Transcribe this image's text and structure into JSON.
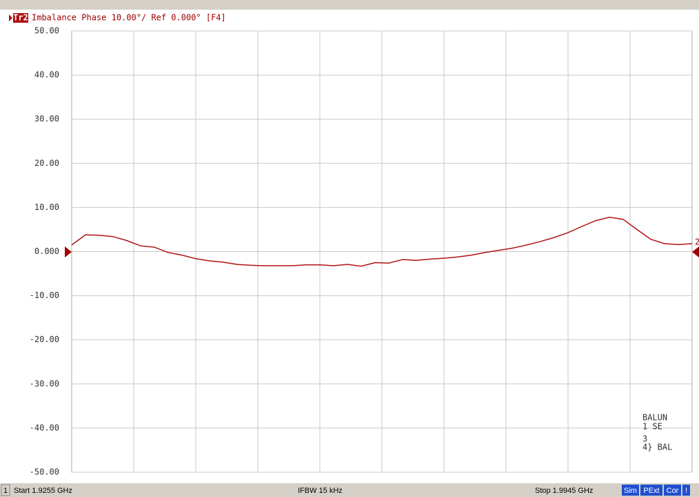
{
  "header": {
    "trace": "Tr2",
    "title": "Imbalance Phase 10.00°/ Ref 0.000° [F4]"
  },
  "chart_data": {
    "type": "line",
    "ylim": [
      -50,
      50
    ],
    "yticks": [
      {
        "value": 50,
        "label": "50.00"
      },
      {
        "value": 40,
        "label": "40.00"
      },
      {
        "value": 30,
        "label": "30.00"
      },
      {
        "value": 20,
        "label": "20.00"
      },
      {
        "value": 10,
        "label": "10.00"
      },
      {
        "value": 0,
        "label": "0.000"
      },
      {
        "value": -10,
        "label": "-10.00"
      },
      {
        "value": -20,
        "label": "-20.00"
      },
      {
        "value": -30,
        "label": "-30.00"
      },
      {
        "value": -40,
        "label": "-40.00"
      },
      {
        "value": -50,
        "label": "-50.00"
      }
    ],
    "grid": true,
    "series": [
      {
        "color": "#b01010",
        "values": [
          1.5,
          3.8,
          3.7,
          3.4,
          2.5,
          1.3,
          1.0,
          -0.2,
          -0.8,
          -1.6,
          -2.1,
          -2.4,
          -2.9,
          -3.1,
          -3.2,
          -3.2,
          -3.2,
          -3.0,
          -3.0,
          -3.2,
          -2.9,
          -3.3,
          -2.5,
          -2.6,
          -1.8,
          -2.0,
          -1.7,
          -1.5,
          -1.2,
          -0.8,
          -0.2,
          0.3,
          0.8,
          1.5,
          2.3,
          3.2,
          4.3,
          5.7,
          7.0,
          7.8,
          7.3,
          5.0,
          2.8,
          1.8,
          1.6,
          1.8
        ]
      }
    ]
  },
  "balun": {
    "title": "BALUN",
    "port1": "1  SE",
    "port3": "3",
    "port4": "4} BAL"
  },
  "status": {
    "channel": "1",
    "start": "Start 1.9255 GHz",
    "ifbw": "IFBW 15 kHz",
    "stop": "Stop 1.9945 GHz",
    "badges": [
      "Sim",
      "PExt",
      "Cor",
      "!"
    ]
  },
  "marker": "2"
}
